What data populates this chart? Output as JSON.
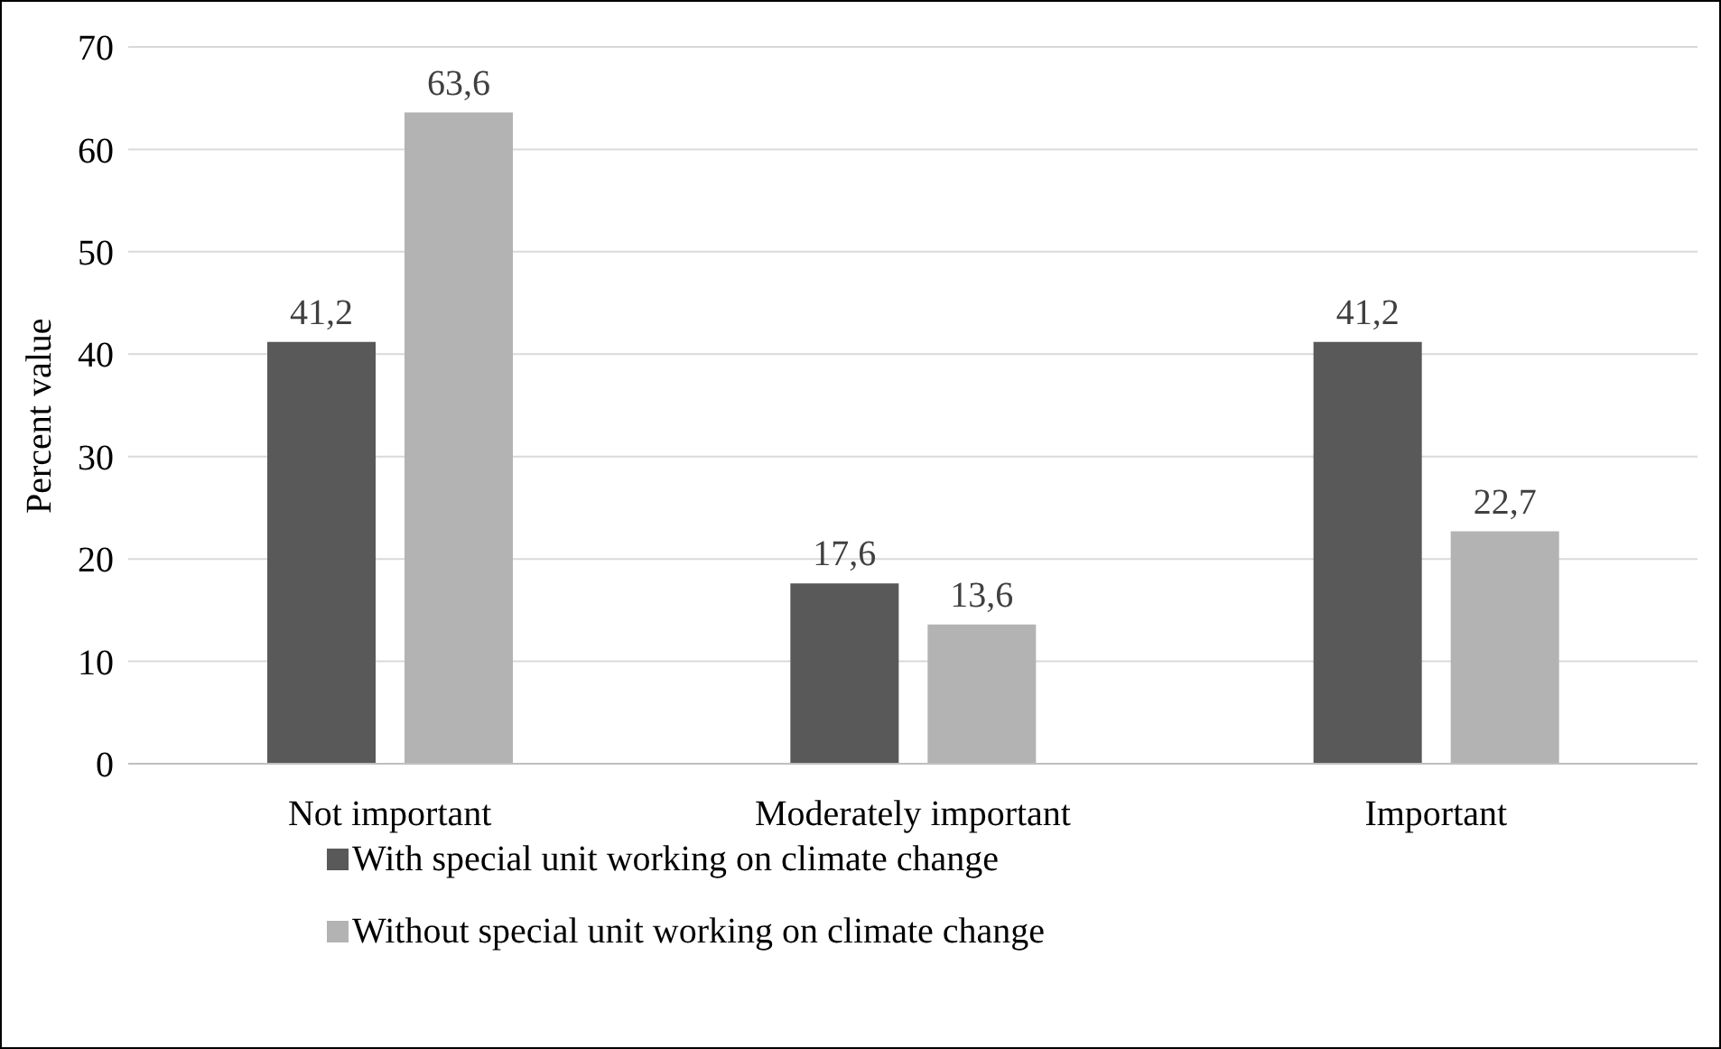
{
  "chart_data": {
    "type": "bar",
    "ylabel": "Percent value",
    "categories": [
      "Not important",
      "Moderately important",
      "Important"
    ],
    "series": [
      {
        "name": "With special unit working on climate change",
        "color": "#595959",
        "values": [
          41.2,
          17.6,
          41.2
        ],
        "value_labels": [
          "41,2",
          "17,6",
          "41,2"
        ]
      },
      {
        "name": "Without special unit working on climate change",
        "color": "#b3b3b3",
        "values": [
          63.6,
          13.6,
          22.7
        ],
        "value_labels": [
          "63,6",
          "13,6",
          "22,7"
        ]
      }
    ],
    "ylim": [
      0,
      70
    ],
    "yticks": [
      0,
      10,
      20,
      30,
      40,
      50,
      60,
      70
    ],
    "grid": "y",
    "legend": "bottom"
  }
}
